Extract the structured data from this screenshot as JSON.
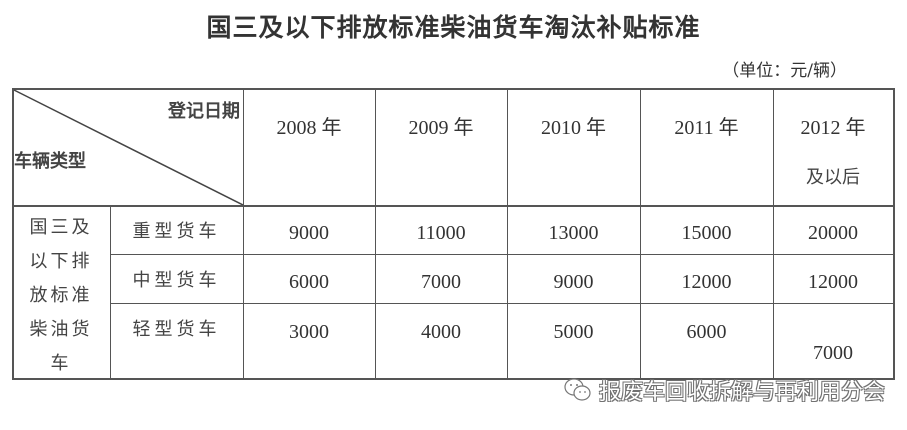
{
  "title": "国三及以下排放标准柴油货车淘汰补贴标准",
  "unit": "（单位：元/辆）",
  "table": {
    "corner_top": "登记日期",
    "corner_bottom": "车辆类型",
    "columns": [
      {
        "year": "2008 年",
        "sub": ""
      },
      {
        "year": "2009 年",
        "sub": ""
      },
      {
        "year": "2010 年",
        "sub": ""
      },
      {
        "year": "2011 年",
        "sub": ""
      },
      {
        "year": "2012 年",
        "sub": "及以后"
      }
    ],
    "group_label": [
      "国三及",
      "以下排",
      "放标准",
      "柴油货",
      "车"
    ],
    "rows": [
      {
        "type": "重型货车",
        "values": [
          "9000",
          "11000",
          "13000",
          "15000",
          "20000"
        ]
      },
      {
        "type": "中型货车",
        "values": [
          "6000",
          "7000",
          "9000",
          "12000",
          "12000"
        ]
      },
      {
        "type": "轻型货车",
        "values": [
          "3000",
          "4000",
          "5000",
          "6000",
          "7000"
        ]
      }
    ]
  },
  "watermark": {
    "icon": "wechat-icon",
    "text": "报废车回收拆解与再利用分会"
  }
}
